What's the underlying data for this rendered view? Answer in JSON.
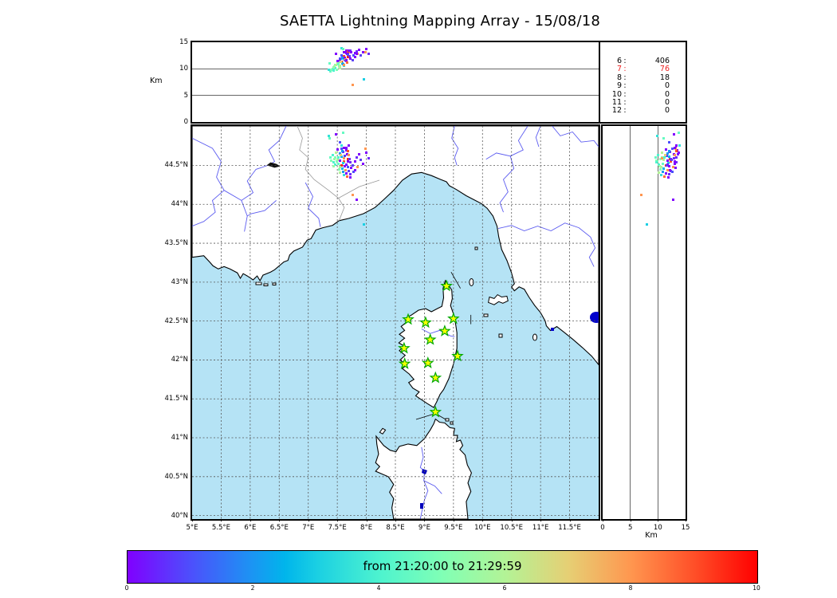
{
  "title": "SAETTA Lightning Mapping Array - 15/08/18",
  "axis_labels": {
    "altitude_left": "Km",
    "altitude_bottom": "Km"
  },
  "stats_panel": {
    "rows": [
      {
        "level": "6",
        "count": "406",
        "highlight": false
      },
      {
        "level": "7",
        "count": "76",
        "highlight": true
      },
      {
        "level": "8",
        "count": "18",
        "highlight": false
      },
      {
        "level": "9",
        "count": "0",
        "highlight": false
      },
      {
        "level": "10",
        "count": "0",
        "highlight": false
      },
      {
        "level": "11",
        "count": "0",
        "highlight": false
      },
      {
        "level": "12",
        "count": "0",
        "highlight": false
      }
    ]
  },
  "map_axes": {
    "x_ticks": [
      {
        "value": 5,
        "label": "5°E"
      },
      {
        "value": 5.5,
        "label": "5.5°E"
      },
      {
        "value": 6,
        "label": "6°E"
      },
      {
        "value": 6.5,
        "label": "6.5°E"
      },
      {
        "value": 7,
        "label": "7°E"
      },
      {
        "value": 7.5,
        "label": "7.5°E"
      },
      {
        "value": 8,
        "label": "8°E"
      },
      {
        "value": 8.5,
        "label": "8.5°E"
      },
      {
        "value": 9,
        "label": "9°E"
      },
      {
        "value": 9.5,
        "label": "9.5°E"
      },
      {
        "value": 10,
        "label": "10°E"
      },
      {
        "value": 10.5,
        "label": "10.5°E"
      },
      {
        "value": 11,
        "label": "11°E"
      },
      {
        "value": 11.5,
        "label": "11.5°E"
      }
    ],
    "y_ticks": [
      {
        "value": 44.5,
        "label": "44.5°N"
      },
      {
        "value": 44,
        "label": "44°N"
      },
      {
        "value": 43.5,
        "label": "43.5°N"
      },
      {
        "value": 43,
        "label": "43°N"
      },
      {
        "value": 42.5,
        "label": "42.5°N"
      },
      {
        "value": 42,
        "label": "42°N"
      },
      {
        "value": 41.5,
        "label": "41.5°N"
      },
      {
        "value": 41,
        "label": "41°N"
      },
      {
        "value": 40.5,
        "label": "40.5°N"
      },
      {
        "value": 40,
        "label": "40°N"
      }
    ],
    "alt_ticks_top": [
      {
        "value": 15,
        "label": "15"
      },
      {
        "value": 10,
        "label": "10"
      },
      {
        "value": 5,
        "label": "5"
      },
      {
        "value": 0,
        "label": "0"
      }
    ],
    "alt_ticks_right": [
      {
        "value": 0,
        "label": "0"
      },
      {
        "value": 5,
        "label": "5"
      },
      {
        "value": 10,
        "label": "10"
      },
      {
        "value": 15,
        "label": "15"
      }
    ]
  },
  "colorbar": {
    "label": "from 21:20:00 to 21:29:59",
    "ticks": [
      {
        "value": 0,
        "label": "0"
      },
      {
        "value": 2,
        "label": "2"
      },
      {
        "value": 4,
        "label": "4"
      },
      {
        "value": 6,
        "label": "6"
      },
      {
        "value": 8,
        "label": "8"
      },
      {
        "value": 10,
        "label": "10"
      }
    ],
    "gradient_stops": [
      [
        0,
        "#8000ff"
      ],
      [
        0.1,
        "#4d4ffc"
      ],
      [
        0.2,
        "#1a96f3"
      ],
      [
        0.25,
        "#00b5eb"
      ],
      [
        0.3,
        "#1acfe3"
      ],
      [
        0.4,
        "#4df3cf"
      ],
      [
        0.5,
        "#80ffb5"
      ],
      [
        0.6,
        "#b3f396"
      ],
      [
        0.7,
        "#e6cf74"
      ],
      [
        0.8,
        "#ff964f"
      ],
      [
        0.9,
        "#ff4f28"
      ],
      [
        1,
        "#ff0000"
      ]
    ]
  },
  "chart_data": {
    "type": "scatter",
    "title": "SAETTA Lightning Mapping Array - 15/08/18",
    "time_range_label": "from 21:20:00 to 21:29:59",
    "panels": [
      "altitude_km_vs_longitude_top",
      "longitude_vs_latitude_map",
      "altitude_km_vs_latitude_right"
    ],
    "lon_range_deg_e": [
      5,
      12
    ],
    "lat_range_deg_n": [
      40,
      45
    ],
    "alt_range_km": [
      0,
      15
    ],
    "colorbar_range": [
      0,
      10
    ],
    "grid": "dashed 0.5 deg",
    "counts_legend": [
      [
        "6",
        406
      ],
      [
        "7",
        76
      ],
      [
        "8",
        18
      ],
      [
        "9",
        0
      ],
      [
        "10",
        0
      ],
      [
        "11",
        0
      ],
      [
        "12",
        0
      ]
    ],
    "station_markers_lon_lat": [
      [
        9.38,
        42.95
      ],
      [
        8.72,
        42.52
      ],
      [
        9.02,
        42.48
      ],
      [
        9.5,
        42.53
      ],
      [
        9.35,
        42.37
      ],
      [
        9.1,
        42.26
      ],
      [
        8.65,
        42.15
      ],
      [
        9.57,
        42.05
      ],
      [
        9.06,
        41.96
      ],
      [
        8.66,
        41.95
      ],
      [
        9.19,
        41.77
      ],
      [
        9.19,
        41.33
      ]
    ],
    "events_lon_lat_alt_color": [
      [
        7.62,
        44.73,
        13.2,
        "#7a00f5"
      ],
      [
        7.57,
        44.71,
        12.6,
        "#4d4ffc"
      ],
      [
        7.65,
        44.69,
        13.5,
        "#8000ff"
      ],
      [
        7.6,
        44.67,
        12.2,
        "#6f2bfa"
      ],
      [
        7.55,
        44.65,
        11.8,
        "#1a96f3"
      ],
      [
        7.67,
        44.64,
        12.9,
        "#8000ff"
      ],
      [
        7.7,
        44.63,
        13.1,
        "#ff964f"
      ],
      [
        7.63,
        44.62,
        11.6,
        "#5a43f5"
      ],
      [
        7.57,
        44.61,
        12.0,
        "#00b5eb"
      ],
      [
        7.52,
        44.6,
        11.2,
        "#4df3cf"
      ],
      [
        7.47,
        44.6,
        10.8,
        "#80ffb5"
      ],
      [
        7.45,
        44.58,
        10.5,
        "#99f9a7"
      ],
      [
        7.5,
        44.57,
        11.0,
        "#b3f396"
      ],
      [
        7.55,
        44.56,
        11.7,
        "#8000ff"
      ],
      [
        7.62,
        44.55,
        12.4,
        "#ff4f28"
      ],
      [
        7.68,
        44.55,
        13.0,
        "#7a00f5"
      ],
      [
        7.73,
        44.54,
        13.4,
        "#6f2bfa"
      ],
      [
        7.6,
        44.53,
        11.9,
        "#1acfe3"
      ],
      [
        7.52,
        44.52,
        10.9,
        "#66fac2"
      ],
      [
        7.47,
        44.51,
        10.2,
        "#4df3cf"
      ],
      [
        7.57,
        44.5,
        11.4,
        "#ff2a15"
      ],
      [
        7.63,
        44.49,
        12.1,
        "#8000ff"
      ],
      [
        7.69,
        44.48,
        12.7,
        "#4d4ffc"
      ],
      [
        7.74,
        44.47,
        13.2,
        "#8000ff"
      ],
      [
        7.59,
        44.46,
        11.1,
        "#00b5eb"
      ],
      [
        7.53,
        44.45,
        10.4,
        "#80ffb5"
      ],
      [
        7.64,
        44.44,
        11.8,
        "#ff964f"
      ],
      [
        7.7,
        44.43,
        12.3,
        "#5a43f5"
      ],
      [
        7.6,
        44.42,
        10.9,
        "#1a96f3"
      ],
      [
        7.55,
        44.41,
        10.1,
        "#b3f396"
      ],
      [
        7.66,
        44.4,
        11.5,
        "#8000ff"
      ],
      [
        7.72,
        44.39,
        12.0,
        "#6f2bfa"
      ],
      [
        7.61,
        44.38,
        10.6,
        "#33e2d8"
      ],
      [
        7.67,
        44.36,
        11.2,
        "#ff6a38"
      ],
      [
        7.73,
        44.35,
        11.9,
        "#8000ff"
      ],
      [
        7.78,
        44.42,
        12.6,
        "#4d4ffc"
      ],
      [
        7.8,
        44.55,
        13.0,
        "#8000ff"
      ],
      [
        7.83,
        44.6,
        13.3,
        "#6f2bfa"
      ],
      [
        7.85,
        44.48,
        12.8,
        "#ff964f"
      ],
      [
        7.88,
        44.64,
        13.6,
        "#8000ff"
      ],
      [
        7.9,
        44.57,
        12.5,
        "#5a43f5"
      ],
      [
        7.95,
        44.52,
        13.1,
        "#8000ff"
      ],
      [
        7.42,
        44.63,
        10.0,
        "#4df3cf"
      ],
      [
        7.4,
        44.56,
        9.8,
        "#80ffb5"
      ],
      [
        7.44,
        44.49,
        10.3,
        "#99f9a7"
      ],
      [
        7.38,
        44.6,
        9.6,
        "#66fac2"
      ],
      [
        7.48,
        44.66,
        10.7,
        "#b3f396"
      ],
      [
        7.35,
        44.88,
        9.9,
        "#33e2d8"
      ],
      [
        8.0,
        44.66,
        13.8,
        "#8000ff"
      ],
      [
        8.04,
        44.59,
        12.9,
        "#6f2bfa"
      ],
      [
        7.98,
        44.71,
        13.2,
        "#ff964f"
      ],
      [
        7.77,
        44.12,
        7.0,
        "#ff964f"
      ],
      [
        7.84,
        44.06,
        12.8,
        "#8000ff"
      ],
      [
        7.96,
        43.74,
        8.0,
        "#1acfe3"
      ],
      [
        7.58,
        44.76,
        13.9,
        "#33e2d8"
      ],
      [
        7.37,
        44.85,
        11.0,
        "#66fac2"
      ],
      [
        7.68,
        44.58,
        12.2,
        "#ff2a15"
      ],
      [
        7.56,
        44.63,
        11.3,
        "#e6cf74"
      ],
      [
        7.62,
        44.59,
        10.8,
        "#ff964f"
      ],
      [
        7.49,
        44.55,
        9.9,
        "#80ffb5"
      ],
      [
        7.66,
        44.51,
        11.7,
        "#8000ff"
      ],
      [
        7.71,
        44.58,
        12.4,
        "#6f2bfa"
      ],
      [
        7.44,
        44.54,
        9.7,
        "#4df3cf"
      ],
      [
        7.59,
        44.68,
        12.1,
        "#1a96f3"
      ],
      [
        7.65,
        44.73,
        13.0,
        "#8000ff"
      ],
      [
        7.76,
        44.5,
        11.6,
        "#5a43f5"
      ],
      [
        7.81,
        44.44,
        12.2,
        "#8000ff"
      ],
      [
        7.54,
        44.48,
        10.6,
        "#b3f396"
      ],
      [
        7.69,
        44.68,
        13.3,
        "#ff4f28"
      ],
      [
        7.51,
        44.7,
        11.5,
        "#8000ff"
      ],
      [
        7.6,
        44.92,
        13.8,
        "#66fac2"
      ],
      [
        7.48,
        44.9,
        12.9,
        "#8000ff"
      ],
      [
        7.55,
        44.8,
        12.0,
        "#4d4ffc"
      ],
      [
        7.7,
        44.76,
        13.4,
        "#8000ff"
      ]
    ],
    "map_colors": {
      "sea": "#b5e3f5",
      "land": "#ffffff",
      "coast": "#000000",
      "rivers": "#5c5cf0",
      "borders": "#999999",
      "lakes": "#0000cc",
      "station_fill": "#f6ff00",
      "station_edge": "#00a800"
    }
  }
}
